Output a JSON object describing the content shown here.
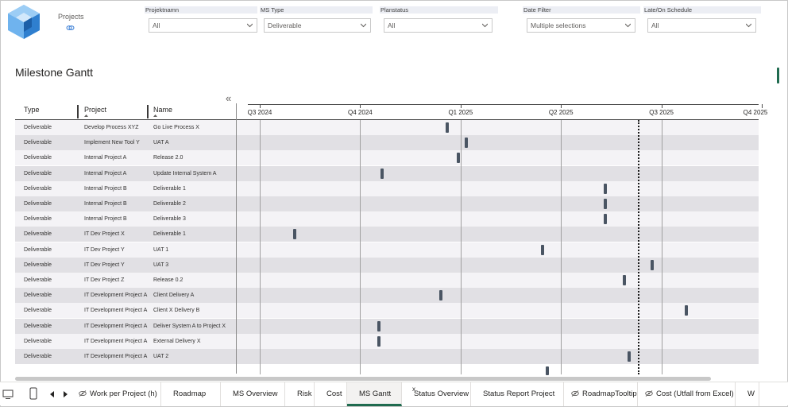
{
  "header": {
    "projects_label": "Projects"
  },
  "slicers": [
    {
      "label": "Projektnamn",
      "value": "All"
    },
    {
      "label": "MS Type",
      "value": "Deliverable"
    },
    {
      "label": "Planstatus",
      "value": "All"
    },
    {
      "label": "Date Filter",
      "value": "Multiple selections"
    },
    {
      "label": "Late/On Schedule",
      "value": "All"
    }
  ],
  "visual": {
    "title": "Milestone Gantt",
    "collapse_glyph": "«",
    "columns": [
      "Type",
      "Project",
      "Name"
    ],
    "quarters": [
      "Q3 2024",
      "Q4 2024",
      "Q1 2025",
      "Q2 2025",
      "Q3 2025",
      "Q4 2025"
    ],
    "rows": [
      {
        "type": "Deliverable",
        "project": "Develop Process XYZ",
        "name": "Go Live Process X",
        "q": 1.87
      },
      {
        "type": "Deliverable",
        "project": "Implement New Tool Y",
        "name": "UAT A",
        "q": 2.06
      },
      {
        "type": "Deliverable",
        "project": "Internal Project A",
        "name": "Release 2.0",
        "q": 1.98
      },
      {
        "type": "Deliverable",
        "project": "Internal Project A",
        "name": "Update Internal System A",
        "q": 1.22
      },
      {
        "type": "Deliverable",
        "project": "Internal Project B",
        "name": "Deliverable 1",
        "q": 3.44
      },
      {
        "type": "Deliverable",
        "project": "Internal Project B",
        "name": "Deliverable 2",
        "q": 3.44
      },
      {
        "type": "Deliverable",
        "project": "Internal Project B",
        "name": "Deliverable 3",
        "q": 3.44
      },
      {
        "type": "Deliverable",
        "project": "IT Dev Project X",
        "name": "Deliverable 1",
        "q": 0.35
      },
      {
        "type": "Deliverable",
        "project": "IT Dev Project Y",
        "name": "UAT 1",
        "q": 2.82
      },
      {
        "type": "Deliverable",
        "project": "IT Dev Project Y",
        "name": "UAT 3",
        "q": 3.91
      },
      {
        "type": "Deliverable",
        "project": "IT Dev Project Z",
        "name": "Release 0.2",
        "q": 3.63
      },
      {
        "type": "Deliverable",
        "project": "IT Development Project A",
        "name": "Client Delivery A",
        "q": 1.8
      },
      {
        "type": "Deliverable",
        "project": "IT Development Project A",
        "name": "Client X Delivery B",
        "q": 4.25
      },
      {
        "type": "Deliverable",
        "project": "IT Development Project A",
        "name": "Deliver System A to Project X",
        "q": 1.19
      },
      {
        "type": "Deliverable",
        "project": "IT Development Project A",
        "name": "External Delivery X",
        "q": 1.19
      },
      {
        "type": "Deliverable",
        "project": "IT Development Project A",
        "name": "UAT 2",
        "q": 3.68
      },
      {
        "type": "",
        "project": "",
        "name": "",
        "q": 2.86
      }
    ],
    "today_q": 3.77
  },
  "tabs": [
    {
      "label": "Work per Project (h)",
      "hidden": true
    },
    {
      "label": "Roadmap",
      "hidden": false
    },
    {
      "label": "MS Overview",
      "hidden": false
    },
    {
      "label": "Risk",
      "hidden": false
    },
    {
      "label": "Cost",
      "hidden": false
    },
    {
      "label": "MS Gantt",
      "hidden": false,
      "active": true
    },
    {
      "label": "Status Overview",
      "hidden": false
    },
    {
      "label": "Status Report Project",
      "hidden": false
    },
    {
      "label": "RoadmapTooltip",
      "hidden": true
    },
    {
      "label": "Cost (Utfall from Excel)",
      "hidden": true
    },
    {
      "label": "W",
      "hidden": false
    }
  ],
  "tab_close_glyph": "x",
  "colors": {
    "accent": "#1f6b4f",
    "milestone": "#4a5563",
    "logo_blue": "#3a8fd6"
  }
}
